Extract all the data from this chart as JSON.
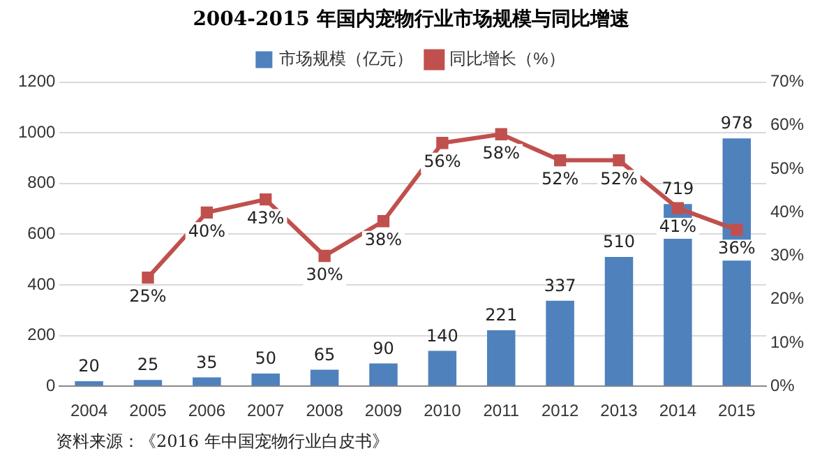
{
  "chart_data": {
    "type": "bar",
    "title": "2004-2015 年国内宠物行业市场规模与同比增速",
    "categories": [
      "2004",
      "2005",
      "2006",
      "2007",
      "2008",
      "2009",
      "2010",
      "2011",
      "2012",
      "2013",
      "2014",
      "2015"
    ],
    "series": [
      {
        "name": "市场规模（亿元）",
        "color": "#4f81bd",
        "values": [
          20,
          25,
          35,
          50,
          65,
          90,
          140,
          221,
          337,
          510,
          719,
          978
        ],
        "value_labels": [
          "20",
          "25",
          "35",
          "50",
          "65",
          "90",
          "140",
          "221",
          "337",
          "510",
          "719",
          "978"
        ]
      },
      {
        "name": "同比增长（%）",
        "type": "line",
        "axis": "y2",
        "color": "#c0504d",
        "marker": "square",
        "values": [
          null,
          25,
          40,
          43,
          30,
          38,
          56,
          58,
          52,
          52,
          41,
          36
        ],
        "value_labels": [
          null,
          "25%",
          "40%",
          "43%",
          "30%",
          "38%",
          "56%",
          "58%",
          "52%",
          "52%",
          "41%",
          "36%"
        ]
      }
    ],
    "ylim": [
      0,
      1200
    ],
    "yticks": [
      0,
      200,
      400,
      600,
      800,
      1000,
      1200
    ],
    "y2lim": [
      0,
      70
    ],
    "y2ticks": [
      {
        "value": 0,
        "label": "0%"
      },
      {
        "value": 10,
        "label": "10%"
      },
      {
        "value": 20,
        "label": "20%"
      },
      {
        "value": 30,
        "label": "30%"
      },
      {
        "value": 40,
        "label": "40%"
      },
      {
        "value": 50,
        "label": "50%"
      },
      {
        "value": 60,
        "label": "60%"
      },
      {
        "value": 70,
        "label": "70%"
      }
    ],
    "grid": "y",
    "legend": "top",
    "annotations": [
      "资料来源：《2016 年中国宠物行业白皮书》"
    ]
  }
}
